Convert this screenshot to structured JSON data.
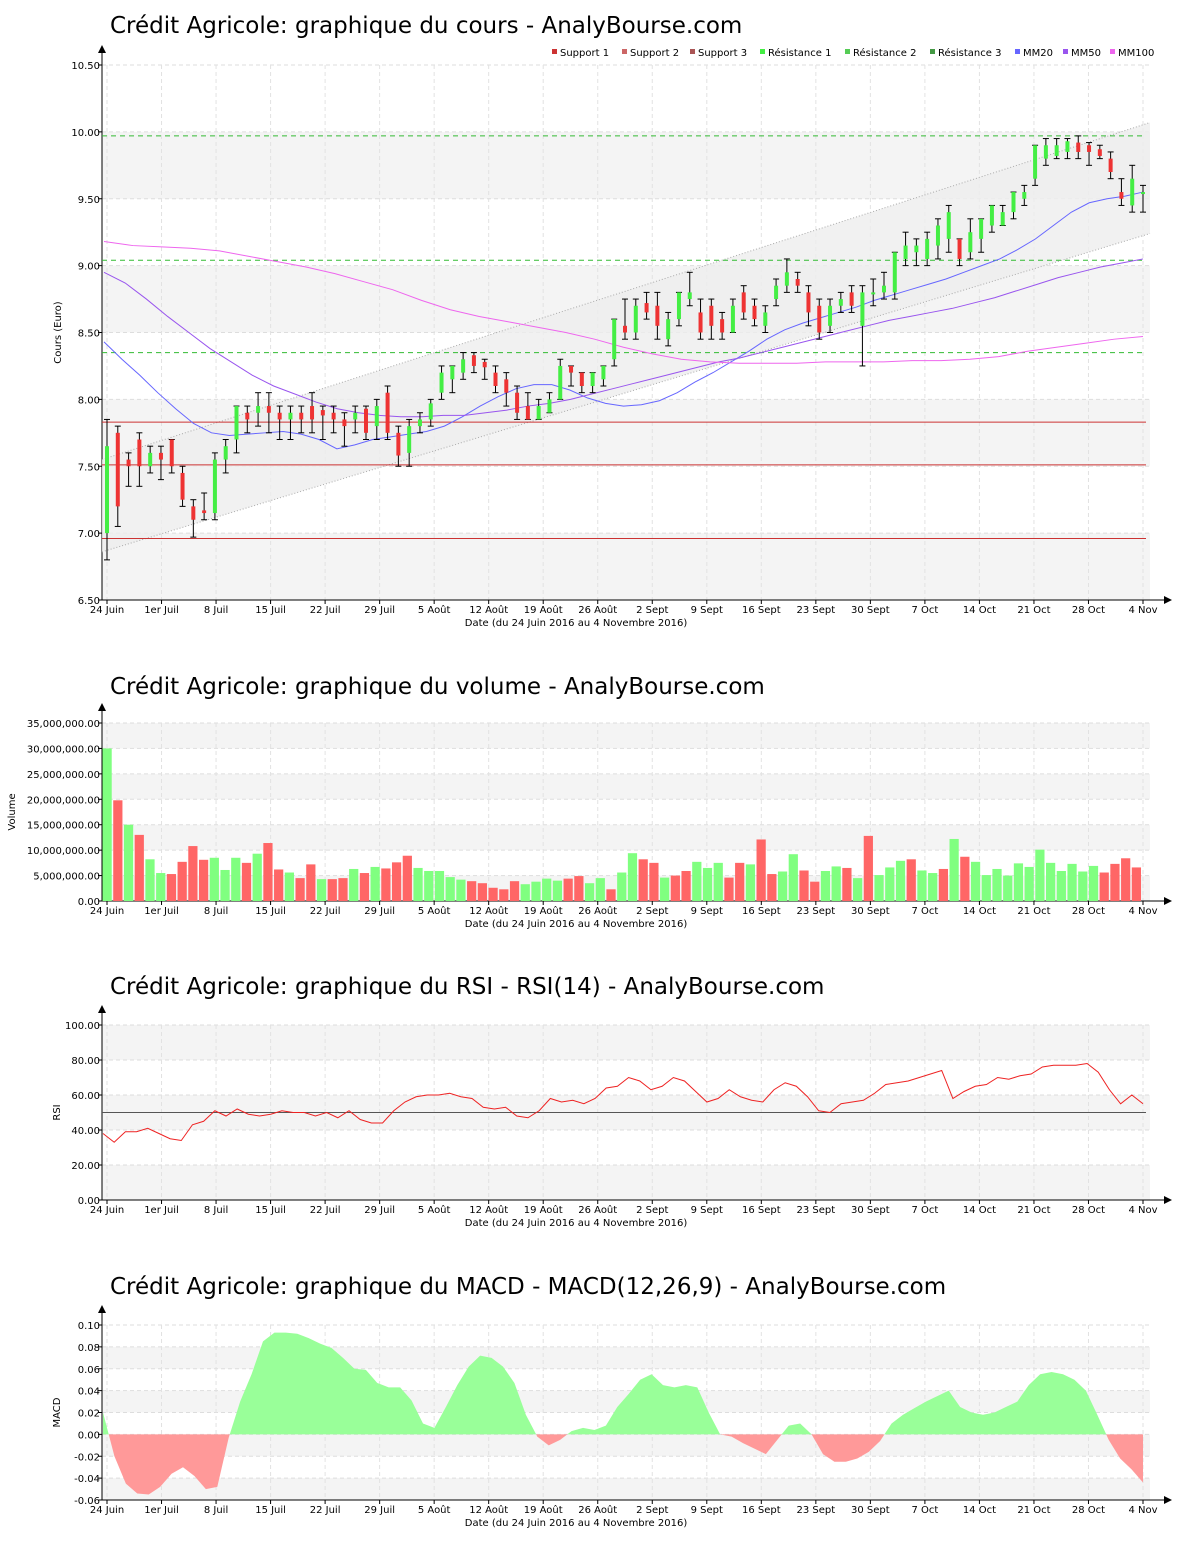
{
  "colors": {
    "up": "#44ee44",
    "down": "#ee3333",
    "support": "#cc3333",
    "resistance": "#33bb33",
    "mm20": "#6666ff",
    "mm50": "#9955ee",
    "mm100": "#ee66ee",
    "vol_up": "#80ff80",
    "vol_down": "#ff6666",
    "rsi": "#ee2222",
    "macd_pos": "#99ff99",
    "macd_neg": "#ff9999"
  },
  "x_ticks": [
    "24 Juin",
    "1er Juil",
    "8 Juil",
    "15 Juil",
    "22 Juil",
    "29 Juil",
    "5 Août",
    "12 Août",
    "19 Août",
    "26 Août",
    "2 Sept",
    "9 Sept",
    "16 Sept",
    "23 Sept",
    "30 Sept",
    "7 Oct",
    "14 Oct",
    "21 Oct",
    "28 Oct",
    "4 Nov"
  ],
  "chart_data": [
    {
      "type": "candlestick",
      "title": "Crédit Agricole: graphique du cours - AnalyBourse.com",
      "xlabel": "Date (du 24 Juin 2016 au 4 Novembre 2016)",
      "ylabel": "Cours (Euro)",
      "ylim": [
        6.5,
        10.5
      ],
      "yticks": [
        "6.50",
        "7.00",
        "7.50",
        "8.00",
        "8.50",
        "9.00",
        "9.50",
        "10.00",
        "10.50"
      ],
      "legend": [
        "Support 1",
        "Support 2",
        "Support 3",
        "Résistance 1",
        "Résistance 2",
        "Résistance 3",
        "MM20",
        "MM50",
        "MM100"
      ],
      "support_levels": [
        7.83,
        7.51,
        6.96
      ],
      "resistance_levels": [
        9.97,
        9.04,
        8.35
      ],
      "candles": [
        [
          7.0,
          7.65,
          7.85,
          6.8
        ],
        [
          7.75,
          7.2,
          7.8,
          7.05
        ],
        [
          7.55,
          7.5,
          7.6,
          7.35
        ],
        [
          7.7,
          7.5,
          7.75,
          7.35
        ],
        [
          7.5,
          7.6,
          7.65,
          7.45
        ],
        [
          7.6,
          7.55,
          7.65,
          7.4
        ],
        [
          7.7,
          7.5,
          7.7,
          7.45
        ],
        [
          7.45,
          7.25,
          7.5,
          7.2
        ],
        [
          7.2,
          7.1,
          7.25,
          6.97
        ],
        [
          7.17,
          7.15,
          7.3,
          7.1
        ],
        [
          7.15,
          7.55,
          7.6,
          7.1
        ],
        [
          7.55,
          7.65,
          7.7,
          7.45
        ],
        [
          7.7,
          7.95,
          7.95,
          7.6
        ],
        [
          7.9,
          7.85,
          7.95,
          7.75
        ],
        [
          7.9,
          7.95,
          8.05,
          7.8
        ],
        [
          7.95,
          7.9,
          8.05,
          7.75
        ],
        [
          7.9,
          7.85,
          7.95,
          7.7
        ],
        [
          7.85,
          7.9,
          7.95,
          7.7
        ],
        [
          7.9,
          7.85,
          7.95,
          7.75
        ],
        [
          7.95,
          7.85,
          8.05,
          7.75
        ],
        [
          7.92,
          7.88,
          7.95,
          7.7
        ],
        [
          7.9,
          7.85,
          7.95,
          7.75
        ],
        [
          7.85,
          7.8,
          7.9,
          7.65
        ],
        [
          7.85,
          7.9,
          7.95,
          7.75
        ],
        [
          7.93,
          7.75,
          7.95,
          7.7
        ],
        [
          7.8,
          7.95,
          8.0,
          7.7
        ],
        [
          8.05,
          7.75,
          8.1,
          7.7
        ],
        [
          7.75,
          7.58,
          7.8,
          7.5
        ],
        [
          7.6,
          7.8,
          7.85,
          7.5
        ],
        [
          7.8,
          7.85,
          7.9,
          7.75
        ],
        [
          7.85,
          7.97,
          8.0,
          7.8
        ],
        [
          8.05,
          8.2,
          8.25,
          8.0
        ],
        [
          8.15,
          8.25,
          8.25,
          8.05
        ],
        [
          8.2,
          8.3,
          8.35,
          8.15
        ],
        [
          8.33,
          8.25,
          8.35,
          8.2
        ],
        [
          8.28,
          8.24,
          8.3,
          8.15
        ],
        [
          8.2,
          8.1,
          8.25,
          8.05
        ],
        [
          8.15,
          8.05,
          8.2,
          7.95
        ],
        [
          8.05,
          7.9,
          8.1,
          7.85
        ],
        [
          7.95,
          7.85,
          8.05,
          7.85
        ],
        [
          7.85,
          7.95,
          8.0,
          7.85
        ],
        [
          7.9,
          8.0,
          8.05,
          7.9
        ],
        [
          8.0,
          8.25,
          8.3,
          8.0
        ],
        [
          8.25,
          8.2,
          8.25,
          8.1
        ],
        [
          8.2,
          8.1,
          8.2,
          8.05
        ],
        [
          8.1,
          8.2,
          8.2,
          8.05
        ],
        [
          8.15,
          8.25,
          8.25,
          8.1
        ],
        [
          8.3,
          8.6,
          8.6,
          8.25
        ],
        [
          8.55,
          8.5,
          8.75,
          8.45
        ],
        [
          8.5,
          8.7,
          8.75,
          8.45
        ],
        [
          8.72,
          8.65,
          8.8,
          8.6
        ],
        [
          8.7,
          8.55,
          8.8,
          8.45
        ],
        [
          8.45,
          8.6,
          8.65,
          8.4
        ],
        [
          8.6,
          8.8,
          8.8,
          8.55
        ],
        [
          8.75,
          8.8,
          8.95,
          8.7
        ],
        [
          8.65,
          8.5,
          8.75,
          8.45
        ],
        [
          8.7,
          8.55,
          8.75,
          8.45
        ],
        [
          8.6,
          8.5,
          8.65,
          8.45
        ],
        [
          8.5,
          8.7,
          8.75,
          8.5
        ],
        [
          8.8,
          8.65,
          8.85,
          8.6
        ],
        [
          8.7,
          8.6,
          8.75,
          8.55
        ],
        [
          8.55,
          8.65,
          8.7,
          8.5
        ],
        [
          8.75,
          8.85,
          8.9,
          8.7
        ],
        [
          8.85,
          8.95,
          9.05,
          8.8
        ],
        [
          8.9,
          8.85,
          8.95,
          8.8
        ],
        [
          8.8,
          8.65,
          8.85,
          8.55
        ],
        [
          8.7,
          8.5,
          8.75,
          8.45
        ],
        [
          8.55,
          8.7,
          8.75,
          8.5
        ],
        [
          8.7,
          8.75,
          8.8,
          8.65
        ],
        [
          8.8,
          8.7,
          8.85,
          8.65
        ],
        [
          8.55,
          8.8,
          8.85,
          8.25
        ],
        [
          8.8,
          8.8,
          8.9,
          8.7
        ],
        [
          8.8,
          8.85,
          8.95,
          8.75
        ],
        [
          8.8,
          9.1,
          9.1,
          8.75
        ],
        [
          9.05,
          9.15,
          9.25,
          9.0
        ],
        [
          9.1,
          9.15,
          9.2,
          9.0
        ],
        [
          9.05,
          9.2,
          9.25,
          9.0
        ],
        [
          9.15,
          9.3,
          9.35,
          9.05
        ],
        [
          9.2,
          9.4,
          9.45,
          9.1
        ],
        [
          9.2,
          9.05,
          9.2,
          9.0
        ],
        [
          9.1,
          9.25,
          9.35,
          9.05
        ],
        [
          9.2,
          9.35,
          9.35,
          9.1
        ],
        [
          9.3,
          9.45,
          9.45,
          9.25
        ],
        [
          9.3,
          9.4,
          9.45,
          9.3
        ],
        [
          9.4,
          9.55,
          9.55,
          9.35
        ],
        [
          9.5,
          9.55,
          9.6,
          9.45
        ],
        [
          9.65,
          9.9,
          9.9,
          9.6
        ],
        [
          9.8,
          9.9,
          9.95,
          9.75
        ],
        [
          9.82,
          9.9,
          9.95,
          9.8
        ],
        [
          9.85,
          9.93,
          9.95,
          9.8
        ],
        [
          9.92,
          9.85,
          9.97,
          9.8
        ],
        [
          9.9,
          9.85,
          9.92,
          9.75
        ],
        [
          9.87,
          9.82,
          9.9,
          9.8
        ],
        [
          9.8,
          9.7,
          9.85,
          9.65
        ],
        [
          9.55,
          9.5,
          9.65,
          9.45
        ],
        [
          9.45,
          9.65,
          9.75,
          9.4
        ],
        [
          9.55,
          9.55,
          9.6,
          9.4
        ]
      ],
      "series": [
        {
          "name": "MM20",
          "values": [
            8.43,
            8.3,
            8.18,
            8.05,
            7.93,
            7.82,
            7.75,
            7.73,
            7.74,
            7.75,
            7.76,
            7.74,
            7.7,
            7.63,
            7.66,
            7.7,
            7.72,
            7.74,
            7.76,
            7.8,
            7.87,
            7.95,
            8.02,
            8.08,
            8.11,
            8.11,
            8.07,
            8.01,
            7.97,
            7.95,
            7.96,
            7.99,
            8.05,
            8.13,
            8.2,
            8.28,
            8.36,
            8.45,
            8.52,
            8.57,
            8.61,
            8.65,
            8.69,
            8.74,
            8.78,
            8.82,
            8.86,
            8.9,
            8.95,
            9.0,
            9.05,
            9.12,
            9.2,
            9.3,
            9.4,
            9.47,
            9.5,
            9.52,
            9.55
          ]
        },
        {
          "name": "MM50",
          "values": [
            8.95,
            8.87,
            8.75,
            8.62,
            8.5,
            8.38,
            8.28,
            8.18,
            8.1,
            8.04,
            7.98,
            7.93,
            7.9,
            7.88,
            7.87,
            7.87,
            7.88,
            7.88,
            7.9,
            7.92,
            7.95,
            7.97,
            8.0,
            8.04,
            8.08,
            8.12,
            8.16,
            8.2,
            8.24,
            8.28,
            8.31,
            8.35,
            8.39,
            8.43,
            8.47,
            8.51,
            8.55,
            8.59,
            8.62,
            8.65,
            8.68,
            8.72,
            8.76,
            8.81,
            8.86,
            8.91,
            8.95,
            8.99,
            9.02,
            9.05
          ]
        },
        {
          "name": "MM100",
          "values": [
            9.18,
            9.15,
            9.14,
            9.13,
            9.11,
            9.07,
            9.03,
            8.99,
            8.94,
            8.88,
            8.82,
            8.74,
            8.67,
            8.62,
            8.58,
            8.54,
            8.5,
            8.45,
            8.39,
            8.34,
            8.3,
            8.28,
            8.27,
            8.27,
            8.27,
            8.28,
            8.28,
            8.28,
            8.29,
            8.29,
            8.3,
            8.32,
            8.36,
            8.39,
            8.42,
            8.45,
            8.47
          ]
        }
      ]
    },
    {
      "type": "bar",
      "title": "Crédit Agricole: graphique du volume - AnalyBourse.com",
      "xlabel": "Date (du 24 Juin 2016 au 4 Novembre 2016)",
      "ylabel": "Volume",
      "ylim": [
        0,
        35000000
      ],
      "yticks": [
        "0.00",
        "5,000,000.00",
        "10,000,000.00",
        "15,000,000.00",
        "20,000,000.00",
        "25,000,000.00",
        "30,000,000.00",
        "35,000,000.00"
      ],
      "values": [
        30000000,
        19800000,
        15000000,
        13000000,
        8200000,
        5500000,
        5300000,
        7700000,
        10800000,
        8100000,
        8500000,
        6100000,
        8500000,
        7500000,
        9300000,
        11400000,
        6200000,
        5600000,
        4500000,
        7200000,
        4300000,
        4300000,
        4500000,
        6300000,
        5500000,
        6700000,
        6400000,
        7600000,
        8900000,
        6500000,
        5900000,
        5900000,
        4700000,
        4200000,
        3900000,
        3500000,
        2600000,
        2300000,
        3900000,
        3300000,
        3800000,
        4400000,
        4000000,
        4400000,
        4900000,
        3500000,
        4500000,
        2300000,
        5600000,
        9400000,
        8200000,
        7500000,
        4600000,
        5000000,
        5900000,
        7700000,
        6500000,
        7500000,
        4600000,
        7500000,
        7200000,
        12100000,
        5300000,
        5800000,
        9200000,
        6000000,
        3800000,
        5900000,
        6800000,
        6500000,
        4500000,
        12800000,
        5100000,
        6600000,
        7900000,
        8200000,
        6000000,
        5500000,
        6300000,
        12200000,
        8700000,
        7700000,
        5100000,
        6300000,
        5000000,
        7400000,
        6700000,
        10100000,
        7500000,
        5900000,
        7300000,
        5800000,
        6900000,
        5600000,
        7300000,
        8400000,
        6600000
      ],
      "up": [
        1,
        0,
        1,
        0,
        1,
        1,
        0,
        0,
        0,
        0,
        1,
        1,
        1,
        0,
        1,
        0,
        0,
        1,
        0,
        0,
        1,
        0,
        0,
        1,
        0,
        1,
        0,
        0,
        0,
        1,
        1,
        1,
        1,
        1,
        0,
        0,
        0,
        0,
        0,
        1,
        1,
        1,
        1,
        0,
        0,
        1,
        1,
        0,
        1,
        1,
        0,
        0,
        1,
        0,
        0,
        1,
        1,
        1,
        0,
        0,
        1,
        0,
        0,
        1,
        1,
        0,
        0,
        1,
        1,
        0,
        1,
        0,
        1,
        1,
        1,
        0,
        1,
        1,
        0,
        1,
        0,
        1,
        1,
        1,
        1,
        1,
        1,
        1,
        1,
        1,
        1,
        1,
        1,
        0,
        0,
        0,
        0
      ]
    },
    {
      "type": "line",
      "title": "Crédit Agricole: graphique du RSI - RSI(14) - AnalyBourse.com",
      "xlabel": "Date (du 24 Juin 2016 au 4 Novembre 2016)",
      "ylabel": "RSI",
      "ylim": [
        0,
        100
      ],
      "yticks": [
        "0.00",
        "20.00",
        "40.00",
        "60.00",
        "80.00",
        "100.00"
      ],
      "reference_line": 50,
      "values": [
        38,
        33,
        39,
        39,
        41,
        38,
        35,
        34,
        43,
        45,
        51,
        48,
        52,
        49,
        48,
        49,
        51,
        50,
        50,
        48,
        50,
        47,
        51,
        46,
        44,
        44,
        51,
        56,
        59,
        60,
        60,
        61,
        59,
        58,
        53,
        52,
        53,
        48,
        47,
        51,
        58,
        56,
        57,
        55,
        58,
        64,
        65,
        70,
        68,
        63,
        65,
        70,
        68,
        62,
        56,
        58,
        63,
        59,
        57,
        56,
        63,
        67,
        65,
        59,
        51,
        50,
        55,
        56,
        57,
        61,
        66,
        67,
        68,
        70,
        72,
        74,
        58,
        62,
        65,
        66,
        70,
        69,
        71,
        72,
        76,
        77,
        77,
        77,
        78,
        73,
        63,
        55,
        60,
        55
      ]
    },
    {
      "type": "area",
      "title": "Crédit Agricole: graphique du MACD - MACD(12,26,9) - AnalyBourse.com",
      "xlabel": "Date (du 24 Juin 2016 au 4 Novembre 2016)",
      "ylabel": "MACD",
      "ylim": [
        -0.06,
        0.1
      ],
      "yticks": [
        "-0.06",
        "-0.04",
        "-0.02",
        "0.00",
        "0.02",
        "0.04",
        "0.06",
        "0.08",
        "0.10"
      ],
      "values": [
        0.02,
        -0.02,
        -0.045,
        -0.054,
        -0.055,
        -0.048,
        -0.036,
        -0.03,
        -0.038,
        -0.05,
        -0.048,
        -0.003,
        0.03,
        0.055,
        0.085,
        0.093,
        0.093,
        0.092,
        0.088,
        0.083,
        0.079,
        0.07,
        0.06,
        0.059,
        0.047,
        0.043,
        0.043,
        0.031,
        0.01,
        0.006,
        0.025,
        0.045,
        0.062,
        0.072,
        0.07,
        0.062,
        0.047,
        0.018,
        -0.002,
        -0.01,
        -0.005,
        0.003,
        0.006,
        0.004,
        0.008,
        0.025,
        0.037,
        0.05,
        0.055,
        0.045,
        0.043,
        0.045,
        0.043,
        0.02,
        0.0,
        -0.002,
        -0.008,
        -0.013,
        -0.018,
        -0.005,
        0.008,
        0.01,
        0.0,
        -0.018,
        -0.025,
        -0.025,
        -0.022,
        -0.016,
        -0.006,
        0.01,
        0.018,
        0.024,
        0.03,
        0.035,
        0.04,
        0.025,
        0.02,
        0.018,
        0.02,
        0.025,
        0.03,
        0.045,
        0.055,
        0.057,
        0.055,
        0.05,
        0.04,
        0.018,
        -0.005,
        -0.022,
        -0.032,
        -0.044
      ]
    }
  ]
}
